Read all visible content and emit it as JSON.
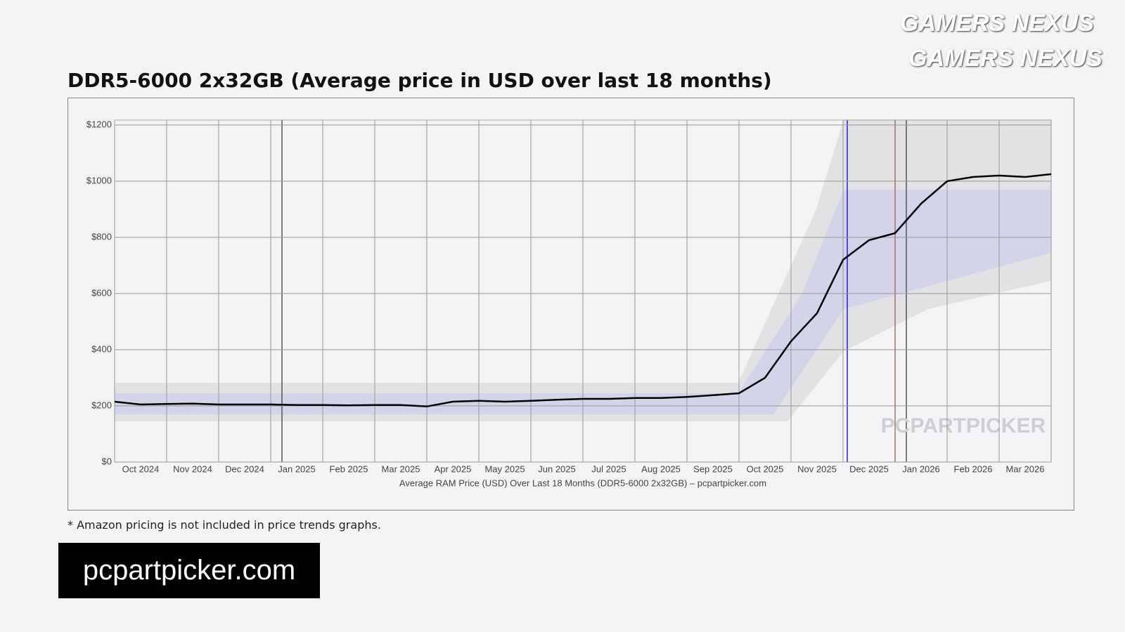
{
  "chart_data": {
    "type": "line",
    "title": "DDR5-6000 2x32GB (Average price in USD over last 18 months)",
    "x_label": "Average RAM Price (USD) Over Last 18 Months (DDR5-6000 2x32GB) – pcpartpicker.com",
    "categories": [
      null,
      "Oct 2024",
      null,
      "Nov 2024",
      null,
      "Dec 2024",
      null,
      "Jan 2025",
      null,
      "Feb 2025",
      null,
      "Mar 2025",
      null,
      "Apr 2025",
      null,
      "May 2025",
      null,
      "Jun 2025",
      null,
      "Jul 2025",
      null,
      "Aug 2025",
      null,
      "Sep 2025",
      null,
      "Oct 2025",
      null,
      "Nov 2025",
      null,
      "Dec 2025",
      null,
      "Jan 2026",
      null,
      "Feb 2026",
      null,
      "Mar 2026",
      null
    ],
    "series": [
      {
        "color": "#000000",
        "values": [
          215,
          205,
          207,
          208,
          205,
          205,
          205,
          203,
          203,
          202,
          203,
          203,
          198,
          215,
          218,
          215,
          218,
          222,
          225,
          225,
          228,
          228,
          232,
          238,
          245,
          300,
          430,
          530,
          720,
          790,
          815,
          920,
          1000,
          1015,
          1020,
          1015,
          1025
        ]
      }
    ],
    "ylim": [
      0,
      1200
    ],
    "yticks": [
      {
        "value": 0,
        "label": "$0"
      },
      {
        "value": 200,
        "label": "$200"
      },
      {
        "value": 400,
        "label": "$400"
      },
      {
        "value": 600,
        "label": "$600"
      },
      {
        "value": 800,
        "label": "$800"
      },
      {
        "value": 1000,
        "label": "$1000"
      },
      {
        "value": 1200,
        "label": "$1200"
      }
    ],
    "grid": true
  },
  "footnote": "* Amazon pricing is not included in price trends graphs.",
  "source": "pcpartpicker.com",
  "watermark": "PCPARTPICKER",
  "logo": {
    "left": "GAMERS",
    "right": "NEXUS"
  }
}
